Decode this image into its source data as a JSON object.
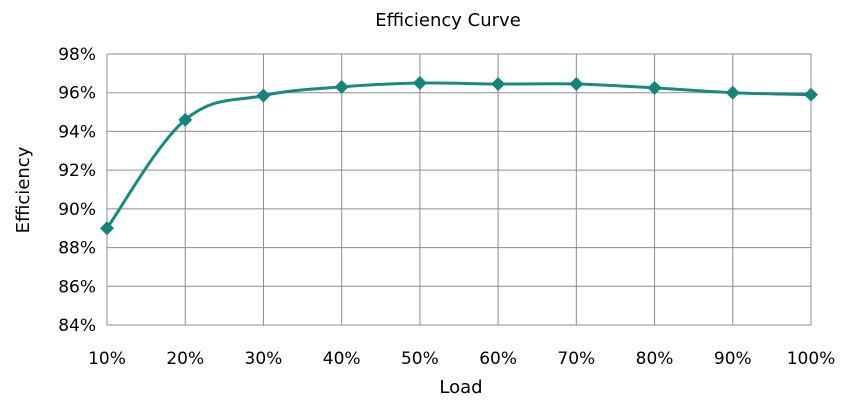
{
  "chart_data": {
    "type": "line",
    "title": "Efficiency Curve",
    "xlabel": "Load",
    "ylabel": "Efficiency",
    "categories": [
      "10%",
      "20%",
      "30%",
      "40%",
      "50%",
      "60%",
      "70%",
      "80%",
      "90%",
      "100%"
    ],
    "x": [
      10,
      20,
      30,
      40,
      50,
      60,
      70,
      80,
      90,
      100
    ],
    "series": [
      {
        "values": [
          89.0,
          94.6,
          95.85,
          96.3,
          96.5,
          96.45,
          96.45,
          96.25,
          96.0,
          95.9
        ]
      }
    ],
    "xlim": [
      10,
      100
    ],
    "ylim": [
      84,
      98
    ],
    "yticks": [
      "84%",
      "86%",
      "88%",
      "90%",
      "92%",
      "94%",
      "96%",
      "98%"
    ],
    "ytick_values": [
      84,
      86,
      88,
      90,
      92,
      94,
      96,
      98
    ],
    "grid": true,
    "color": "#1a8a80",
    "marker_color": "#16847a",
    "marker": "diamond"
  }
}
